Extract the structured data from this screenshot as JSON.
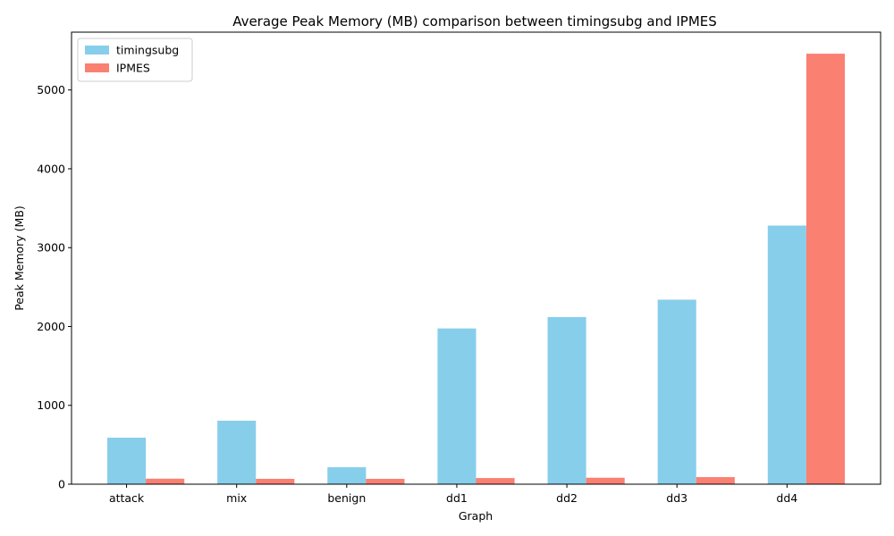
{
  "chart_data": {
    "type": "bar",
    "title": "Average Peak Memory (MB) comparison between timingsubg and IPMES",
    "xlabel": "Graph",
    "ylabel": "Peak Memory (MB)",
    "categories": [
      "attack",
      "mix",
      "benign",
      "dd1",
      "dd2",
      "dd3",
      "dd4"
    ],
    "series": [
      {
        "name": "timingsubg",
        "color": "#87ceeb",
        "values": [
          590,
          805,
          215,
          1975,
          2120,
          2340,
          3280
        ]
      },
      {
        "name": "IPMES",
        "color": "#fa8072",
        "values": [
          70,
          68,
          68,
          78,
          82,
          90,
          5460
        ]
      }
    ],
    "ylim": [
      0,
      5733
    ],
    "yticks": [
      0,
      1000,
      2000,
      3000,
      4000,
      5000
    ],
    "legend_position": "upper-left",
    "grid": false
  }
}
